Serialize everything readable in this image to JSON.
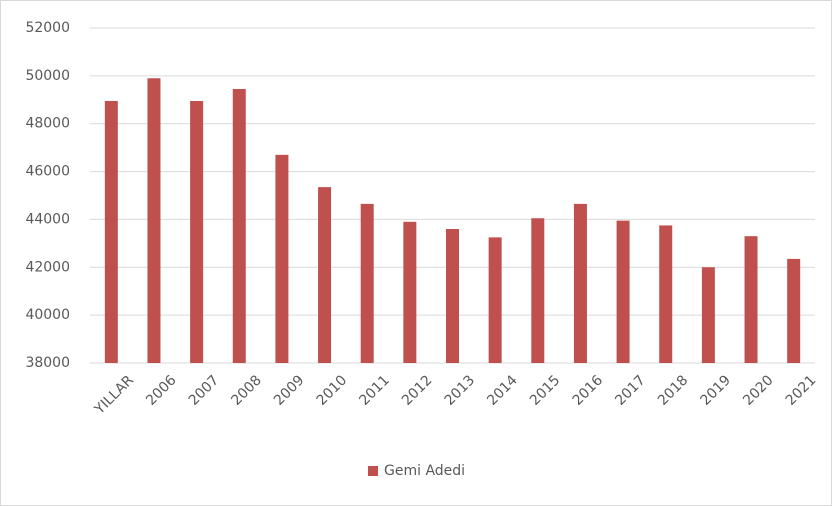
{
  "chart_data": {
    "type": "bar",
    "categories": [
      "YILLAR",
      "2006",
      "2007",
      "2008",
      "2009",
      "2010",
      "2011",
      "2012",
      "2013",
      "2014",
      "2015",
      "2016",
      "2017",
      "2018",
      "2019",
      "2020",
      "2021"
    ],
    "series": [
      {
        "name": "Gemi Adedi",
        "color": "#c0504d",
        "values": [
          48950,
          49900,
          48950,
          49450,
          46700,
          45350,
          44650,
          43900,
          43600,
          43250,
          44050,
          44650,
          43950,
          43750,
          42000,
          43300,
          42350
        ]
      }
    ],
    "ylim": [
      38000,
      52000
    ],
    "yticks": [
      38000,
      40000,
      42000,
      44000,
      46000,
      48000,
      50000,
      52000
    ],
    "grid": true,
    "legend": "bottom"
  }
}
